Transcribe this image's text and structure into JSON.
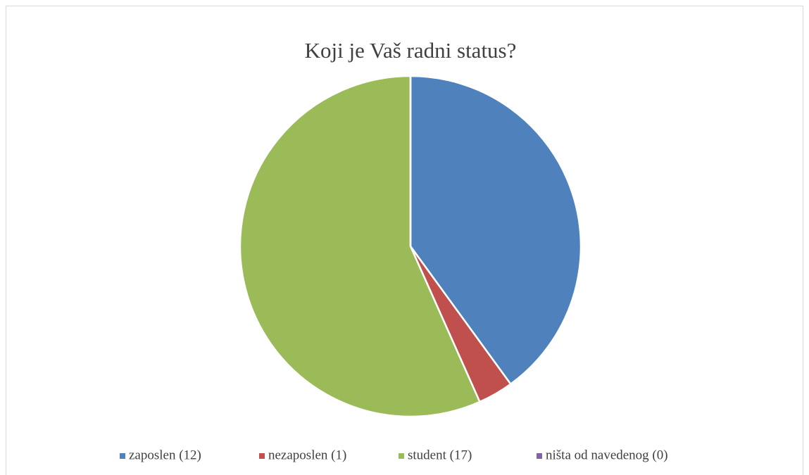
{
  "chart_data": {
    "type": "pie",
    "title": "Koji je Vaš radni status?",
    "categories": [
      "zaposlen (12)",
      "nezaposlen (1)",
      "student (17)",
      "ništa od navedenog (0)"
    ],
    "values": [
      12,
      1,
      17,
      0
    ],
    "colors": [
      "#4f81bd",
      "#c0504d",
      "#9bbb59",
      "#8064a2"
    ],
    "legend": "bottom"
  }
}
